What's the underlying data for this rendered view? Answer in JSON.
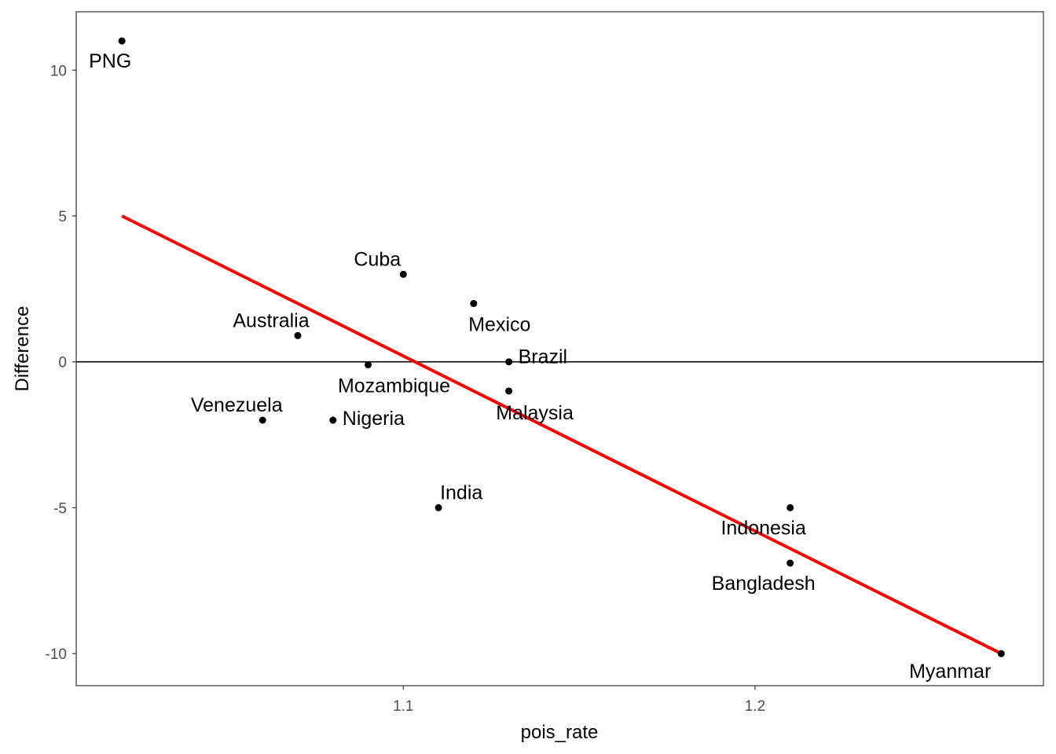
{
  "chart_data": {
    "type": "scatter",
    "title": "",
    "xlabel": "pois_rate",
    "ylabel": "Difference",
    "xlim": [
      1.007,
      1.282
    ],
    "ylim": [
      -11.1,
      12.0
    ],
    "x_ticks": [
      1.1,
      1.2
    ],
    "x_tick_labels": [
      "1.1",
      "1.2"
    ],
    "y_ticks": [
      10,
      5,
      0,
      -5,
      -10
    ],
    "y_tick_labels": [
      "10",
      "5",
      "0",
      "-5",
      "-10"
    ],
    "grid": false,
    "reference_line": {
      "y": 0,
      "color": "#000000"
    },
    "points": [
      {
        "label": "PNG",
        "x": 1.02,
        "y": 11,
        "label_pos": "below"
      },
      {
        "label": "Cuba",
        "x": 1.1,
        "y": 3,
        "label_pos": "above-left"
      },
      {
        "label": "Mexico",
        "x": 1.12,
        "y": 2,
        "label_pos": "below-right"
      },
      {
        "label": "Australia",
        "x": 1.07,
        "y": 0.9,
        "label_pos": "above-left"
      },
      {
        "label": "Brazil",
        "x": 1.13,
        "y": 0,
        "label_pos": "right"
      },
      {
        "label": "Mozambique",
        "x": 1.09,
        "y": -0.1,
        "label_pos": "below-right"
      },
      {
        "label": "Malaysia",
        "x": 1.13,
        "y": -1,
        "label_pos": "below-right"
      },
      {
        "label": "Venezuela",
        "x": 1.06,
        "y": -2,
        "label_pos": "above-left"
      },
      {
        "label": "Nigeria",
        "x": 1.08,
        "y": -2,
        "label_pos": "right"
      },
      {
        "label": "India",
        "x": 1.11,
        "y": -5,
        "label_pos": "above-right"
      },
      {
        "label": "Indonesia",
        "x": 1.21,
        "y": -5,
        "label_pos": "below"
      },
      {
        "label": "Bangladesh",
        "x": 1.21,
        "y": -6.9,
        "label_pos": "below"
      },
      {
        "label": "Myanmar",
        "x": 1.27,
        "y": -10,
        "label_pos": "below-left"
      }
    ],
    "fit_line": {
      "color": "#ff0000",
      "points": [
        {
          "x": 1.02,
          "y": 5.0
        },
        {
          "x": 1.27,
          "y": -10.0
        }
      ]
    },
    "colors": {
      "points": "#000000",
      "fit": "#ff0000",
      "panel_border": "#333333"
    }
  }
}
